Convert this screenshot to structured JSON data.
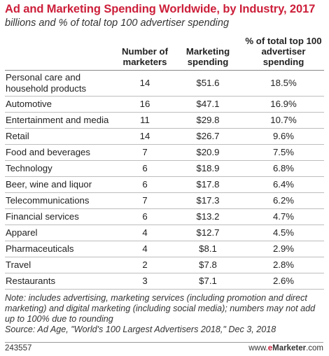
{
  "chart_data": {
    "type": "table",
    "title": "Ad and Marketing Spending Worldwide, by Industry, 2017",
    "subtitle": "billions and % of total top 100 advertiser spending",
    "columns": [
      "",
      "Number of marketers",
      "Marketing spending",
      "% of total top 100 advertiser spending"
    ],
    "rows": [
      {
        "industry": "Personal care and household products",
        "marketers": "14",
        "spending": "$51.6",
        "share": "18.5%"
      },
      {
        "industry": "Automotive",
        "marketers": "16",
        "spending": "$47.1",
        "share": "16.9%"
      },
      {
        "industry": "Entertainment and media",
        "marketers": "11",
        "spending": "$29.8",
        "share": "10.7%"
      },
      {
        "industry": "Retail",
        "marketers": "14",
        "spending": "$26.7",
        "share": "9.6%"
      },
      {
        "industry": "Food and beverages",
        "marketers": "7",
        "spending": "$20.9",
        "share": "7.5%"
      },
      {
        "industry": "Technology",
        "marketers": "6",
        "spending": "$18.9",
        "share": "6.8%"
      },
      {
        "industry": "Beer, wine and liquor",
        "marketers": "6",
        "spending": "$17.8",
        "share": "6.4%"
      },
      {
        "industry": "Telecommunications",
        "marketers": "7",
        "spending": "$17.3",
        "share": "6.2%"
      },
      {
        "industry": "Financial services",
        "marketers": "6",
        "spending": "$13.2",
        "share": "4.7%"
      },
      {
        "industry": "Apparel",
        "marketers": "4",
        "spending": "$12.7",
        "share": "4.5%"
      },
      {
        "industry": "Pharmaceuticals",
        "marketers": "4",
        "spending": "$8.1",
        "share": "2.9%"
      },
      {
        "industry": "Travel",
        "marketers": "2",
        "spending": "$7.8",
        "share": "2.8%"
      },
      {
        "industry": "Restaurants",
        "marketers": "3",
        "spending": "$7.1",
        "share": "2.6%"
      }
    ],
    "note": "Note: includes advertising, marketing services (including promotion and direct marketing) and digital marketing (including social media); numbers may not add up to 100% due to rounding",
    "source": "Source: Ad Age, \"World's 100 Largest Advertisers 2018,\" Dec 3, 2018"
  },
  "footer": {
    "chart_id": "243557",
    "logo_prefix": "www.",
    "logo_e": "e",
    "logo_brand": "Marketer",
    "logo_suffix": ".com"
  },
  "colors": {
    "title": "#cc1f3a",
    "rule": "#bdbdbd"
  }
}
